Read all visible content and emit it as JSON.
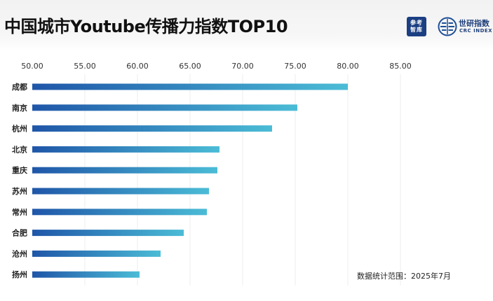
{
  "title": "中国城市Youtube传播力指数TOP10",
  "logos": {
    "left": {
      "line1": "参考",
      "line2": "智库",
      "icon": "cankao-think-tank-logo",
      "color": "#1b3f82"
    },
    "right": {
      "cn": "世研指数",
      "en": "CRC INDEX",
      "icon": "crc-globe-logo",
      "color": "#1f4f96"
    }
  },
  "footnote": "数据统计范围：2025年7月",
  "chart_data": {
    "type": "bar",
    "orientation": "horizontal",
    "categories": [
      "成都",
      "南京",
      "杭州",
      "北京",
      "重庆",
      "苏州",
      "常州",
      "合肥",
      "沧州",
      "扬州"
    ],
    "values": [
      80.0,
      75.2,
      72.8,
      67.8,
      67.6,
      66.8,
      66.6,
      64.4,
      62.2,
      60.2
    ],
    "xlim": [
      50,
      85
    ],
    "xticks": [
      "50.00",
      "55.00",
      "60.00",
      "65.00",
      "70.00",
      "75.00",
      "80.00",
      "85.00"
    ],
    "tick_values": [
      50,
      55,
      60,
      65,
      70,
      75,
      80,
      85
    ],
    "axis_position": "top",
    "grid": true,
    "bar_gradient": [
      "#1f56a8",
      "#4bbcd6"
    ]
  }
}
